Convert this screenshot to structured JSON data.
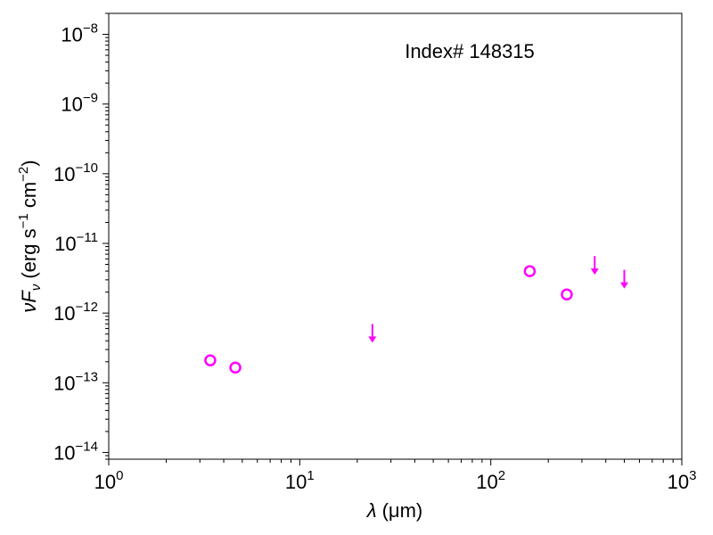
{
  "chart_data": {
    "type": "scatter",
    "annotation": "Index# 148315",
    "xlabel": {
      "symbol": "λ",
      "unit": "(μm)"
    },
    "ylabel": {
      "nu": "ν",
      "F": "F",
      "sub": "ν",
      "unit_open": "(erg s",
      "exp1": "−1",
      "unit_mid": " cm",
      "exp2": "−2",
      "unit_close": ")"
    },
    "xscale": "log",
    "yscale": "log",
    "xlim": [
      1,
      1000
    ],
    "ylim": [
      8e-15,
      2e-08
    ],
    "x_ticks": [
      {
        "value": 1,
        "base": "10",
        "exp": "0"
      },
      {
        "value": 10,
        "base": "10",
        "exp": "1"
      },
      {
        "value": 100,
        "base": "10",
        "exp": "2"
      },
      {
        "value": 1000,
        "base": "10",
        "exp": "3"
      }
    ],
    "y_ticks": [
      {
        "value": 1e-14,
        "base": "10",
        "exp": "−14"
      },
      {
        "value": 1e-13,
        "base": "10",
        "exp": "−13"
      },
      {
        "value": 1e-12,
        "base": "10",
        "exp": "−12"
      },
      {
        "value": 1e-11,
        "base": "10",
        "exp": "−11"
      },
      {
        "value": 1e-10,
        "base": "10",
        "exp": "−10"
      },
      {
        "value": 1e-09,
        "base": "10",
        "exp": "−9"
      },
      {
        "value": 1e-08,
        "base": "10",
        "exp": "−8"
      }
    ],
    "series": [
      {
        "marker": "open-circle",
        "color": "#ff00ff",
        "points": [
          {
            "x": 3.4,
            "y": 2.1e-13
          },
          {
            "x": 4.6,
            "y": 1.65e-13
          },
          {
            "x": 160,
            "y": 4e-12
          },
          {
            "x": 250,
            "y": 1.85e-12
          }
        ]
      },
      {
        "marker": "upper-limit-arrow",
        "color": "#ff00ff",
        "points": [
          {
            "x": 24,
            "y": 5.5e-13
          },
          {
            "x": 350,
            "y": 5.2e-12
          },
          {
            "x": 500,
            "y": 3.3e-12
          }
        ]
      }
    ],
    "grid": false
  }
}
